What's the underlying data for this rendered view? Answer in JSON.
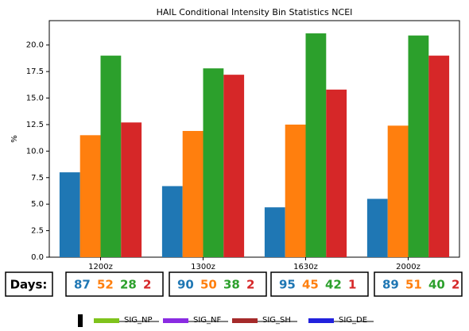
{
  "chart_data": {
    "type": "bar",
    "title": "HAIL Conditional Intensity Bin Statistics NCEI",
    "y_label": "%",
    "categories": [
      "1200z",
      "1300z",
      "1630z",
      "2000z"
    ],
    "series": [
      {
        "color": "#1f77b4",
        "values": [
          8.0,
          6.7,
          4.7,
          5.5
        ]
      },
      {
        "color": "#ff7f0e",
        "values": [
          11.5,
          11.9,
          12.5,
          12.4
        ]
      },
      {
        "color": "#2ca02c",
        "values": [
          19.0,
          17.8,
          21.1,
          20.9
        ]
      },
      {
        "color": "#d62728",
        "values": [
          12.7,
          17.2,
          15.8,
          19.0
        ]
      }
    ],
    "ylim": [
      0,
      22.3
    ],
    "yticks": [
      {
        "value": 0,
        "label": "0.0"
      },
      {
        "value": 2.5,
        "label": "2.5"
      },
      {
        "value": 5,
        "label": "5.0"
      },
      {
        "value": 7.5,
        "label": "7.5"
      },
      {
        "value": 10,
        "label": "10.0"
      },
      {
        "value": 12.5,
        "label": "12.5"
      },
      {
        "value": 15,
        "label": "15.0"
      },
      {
        "value": 17.5,
        "label": "17.5"
      },
      {
        "value": 20,
        "label": "20.0"
      }
    ],
    "grid": false,
    "days_label": "Days:",
    "days": [
      [
        87,
        52,
        28,
        2
      ],
      [
        90,
        50,
        38,
        2
      ],
      [
        95,
        45,
        42,
        1
      ],
      [
        89,
        51,
        40,
        2
      ]
    ],
    "legend": [
      {
        "label": "SIG_NP",
        "color": "#7fc31c"
      },
      {
        "label": "SIG_NF",
        "color": "#8a2be2"
      },
      {
        "label": "SIG_SH",
        "color": "#a52a2a"
      },
      {
        "label": "SIG_DE",
        "color": "#2222dd"
      }
    ]
  }
}
